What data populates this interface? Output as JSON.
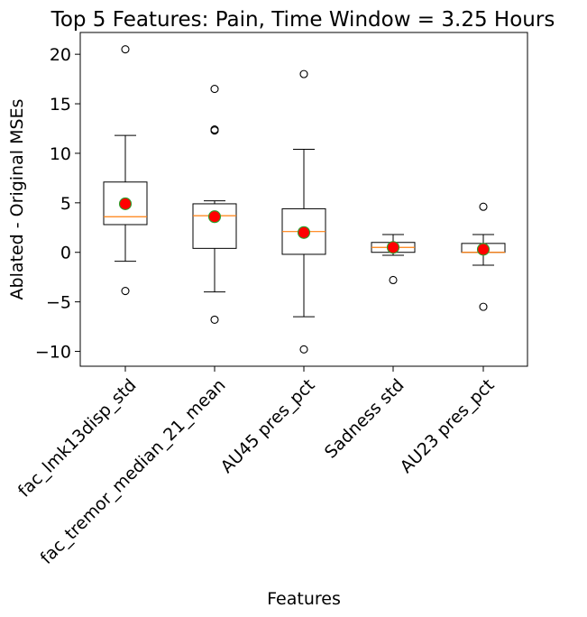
{
  "chart_data": {
    "type": "box",
    "title": "Top 5 Features: Pain, Time Window = 3.25 Hours",
    "xlabel": "Features",
    "ylabel": "Ablated - Original MSEs",
    "ylim": [
      -11.5,
      22.2
    ],
    "yticks": [
      20,
      15,
      10,
      5,
      0,
      -5,
      -10
    ],
    "ytick_labels": [
      "20",
      "15",
      "10",
      "5",
      "0",
      "−5",
      "−10"
    ],
    "grid": false,
    "colors": {
      "box": "#000000",
      "median": "#ff7f0e",
      "mean_fill": "#ff0000",
      "mean_edge": "#2ca02c",
      "flier": "#000000"
    },
    "categories": [
      "fac_lmk13disp_std",
      "fac_tremor_median_21_mean",
      "AU45 pres_pct",
      "Sadness std",
      "AU23 pres_pct"
    ],
    "boxes": [
      {
        "whisker_low": -0.9,
        "q1": 2.8,
        "median": 3.6,
        "q3": 7.1,
        "whisker_high": 11.8,
        "mean": 4.9,
        "fliers": [
          20.5,
          -3.9
        ]
      },
      {
        "whisker_low": -4.0,
        "q1": 0.4,
        "median": 3.7,
        "q3": 4.9,
        "whisker_high": 5.2,
        "mean": 3.6,
        "fliers": [
          16.5,
          12.3,
          12.4,
          -6.8
        ]
      },
      {
        "whisker_low": -6.5,
        "q1": -0.2,
        "median": 2.1,
        "q3": 4.4,
        "whisker_high": 10.4,
        "mean": 2.0,
        "fliers": [
          18.0,
          -9.8
        ]
      },
      {
        "whisker_low": -0.3,
        "q1": 0.0,
        "median": 0.5,
        "q3": 1.0,
        "whisker_high": 1.8,
        "mean": 0.5,
        "fliers": [
          -2.8
        ]
      },
      {
        "whisker_low": -1.3,
        "q1": 0.0,
        "median": 0.0,
        "q3": 0.9,
        "whisker_high": 1.8,
        "mean": 0.3,
        "fliers": [
          4.6,
          -5.5
        ]
      }
    ]
  }
}
